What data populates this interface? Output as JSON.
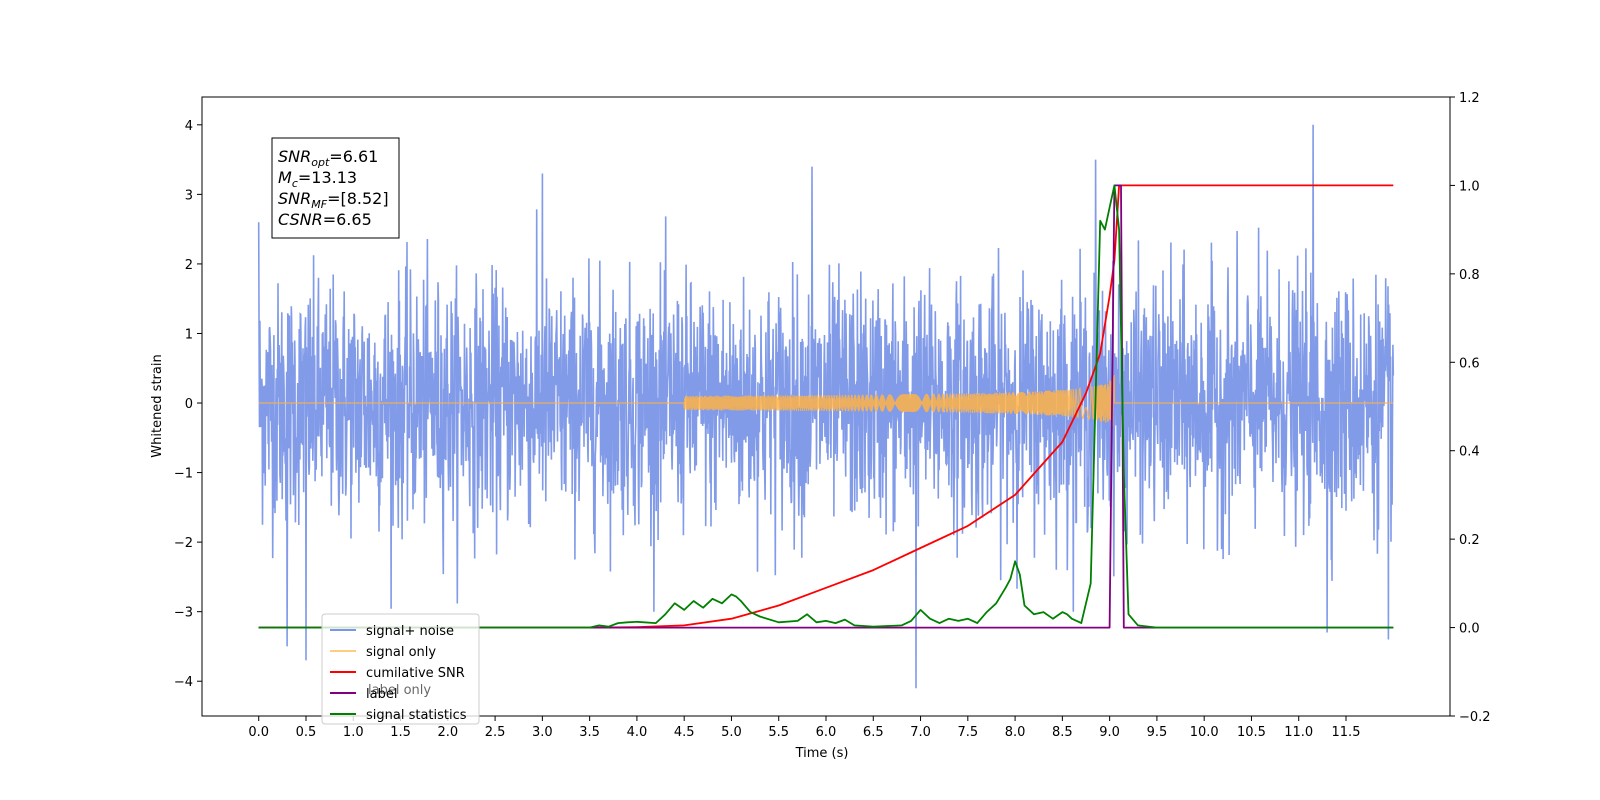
{
  "chart_data": {
    "type": "line",
    "title": "",
    "xlabel": "Time (s)",
    "ylabel": "Whitened strain",
    "ylabel_right": "",
    "xlim": [
      -0.6,
      12.6
    ],
    "ylim": [
      -4.5,
      4.4
    ],
    "ylim_right": [
      -0.2,
      1.2
    ],
    "x_ticks": [
      0.0,
      0.5,
      1.0,
      1.5,
      2.0,
      2.5,
      3.0,
      3.5,
      4.0,
      4.5,
      5.0,
      5.5,
      6.0,
      6.5,
      7.0,
      7.5,
      8.0,
      8.5,
      9.0,
      9.5,
      10.0,
      10.5,
      11.0,
      11.5
    ],
    "x_tick_labels": [
      "0.0",
      "0.5",
      "1.0",
      "1.5",
      "2.0",
      "2.5",
      "3.0",
      "3.5",
      "4.0",
      "4.5",
      "5.0",
      "5.5",
      "6.0",
      "6.5",
      "7.0",
      "7.5",
      "8.0",
      "8.5",
      "9.0",
      "9.5",
      "10.0",
      "10.5",
      "11.0",
      "11.5"
    ],
    "y_ticks": [
      -4,
      -3,
      -2,
      -1,
      0,
      1,
      2,
      3,
      4
    ],
    "y_tick_labels": [
      "−4",
      "−3",
      "−2",
      "−1",
      "0",
      "1",
      "2",
      "3",
      "4"
    ],
    "y_ticks_right": [
      -0.2,
      0.0,
      0.2,
      0.4,
      0.6,
      0.8,
      1.0,
      1.2
    ],
    "y_tick_labels_right": [
      "−0.2",
      "0.0",
      "0.2",
      "0.4",
      "0.6",
      "0.8",
      "1.0",
      "1.2"
    ],
    "grid": false,
    "legend_position": "lower-left",
    "annotation": {
      "lines": [
        {
          "symbol": "SNR",
          "sub": "opt",
          "value": "=6.61"
        },
        {
          "symbol": "M",
          "sub": "c",
          "value": "=13.13"
        },
        {
          "symbol": "SNR",
          "sub": "MF",
          "value": "=[8.52]"
        },
        {
          "symbol": "CSNR",
          "sub": "",
          "value": "=6.65"
        }
      ]
    },
    "series": [
      {
        "name": "signal+ noise",
        "axis": "left",
        "color": "#7a96e8",
        "description_values": {
          "x_range": [
            0.0,
            12.0
          ],
          "typical_envelope": [
            -2.0,
            2.3
          ],
          "peak_max": 4.0,
          "peak_min": -4.1
        },
        "notable_spikes": [
          [
            0.0,
            2.6
          ],
          [
            0.3,
            -3.5
          ],
          [
            0.5,
            -3.7
          ],
          [
            3.0,
            3.3
          ],
          [
            5.85,
            3.4
          ],
          [
            6.95,
            -4.1
          ],
          [
            8.85,
            3.5
          ],
          [
            11.15,
            4.0
          ],
          [
            11.3,
            -3.3
          ],
          [
            11.95,
            -3.4
          ]
        ]
      },
      {
        "name": "signal only",
        "axis": "left",
        "color": "#ffb347",
        "chirp": {
          "start": 4.5,
          "merger": 9.05,
          "end_amplitude": 0.4
        }
      },
      {
        "name": "cumilative SNR",
        "axis": "right",
        "color": "#ff0000",
        "x": [
          0.0,
          3.5,
          4.0,
          4.5,
          5.0,
          5.5,
          6.0,
          6.5,
          7.0,
          7.5,
          8.0,
          8.5,
          8.75,
          8.9,
          9.0,
          9.05,
          9.1,
          9.2,
          12.0
        ],
        "values": [
          0.0,
          0.0,
          0.001,
          0.005,
          0.02,
          0.05,
          0.09,
          0.13,
          0.18,
          0.23,
          0.3,
          0.42,
          0.53,
          0.62,
          0.75,
          0.83,
          1.0,
          1.0,
          1.0
        ]
      },
      {
        "name": "label",
        "axis": "right",
        "color": "#800080",
        "x": [
          0.0,
          9.0,
          9.05,
          9.12,
          9.15,
          9.2,
          12.0
        ],
        "values": [
          0.0,
          0.0,
          1.0,
          1.0,
          0.0,
          0.0,
          0.0
        ]
      },
      {
        "name": "signal statistics",
        "axis": "right",
        "color": "#008000",
        "x": [
          0.0,
          3.5,
          3.6,
          3.7,
          3.8,
          3.9,
          4.0,
          4.2,
          4.3,
          4.4,
          4.5,
          4.6,
          4.7,
          4.8,
          4.9,
          5.0,
          5.05,
          5.1,
          5.2,
          5.3,
          5.5,
          5.7,
          5.8,
          5.9,
          6.0,
          6.1,
          6.2,
          6.3,
          6.5,
          6.8,
          6.9,
          7.0,
          7.1,
          7.2,
          7.3,
          7.4,
          7.5,
          7.6,
          7.7,
          7.8,
          7.9,
          7.95,
          8.0,
          8.05,
          8.1,
          8.2,
          8.3,
          8.4,
          8.5,
          8.55,
          8.6,
          8.7,
          8.8,
          8.9,
          8.95,
          9.0,
          9.05,
          9.1,
          9.15,
          9.2,
          9.3,
          9.5,
          12.0
        ],
        "values": [
          0.0,
          0.0,
          0.005,
          0.002,
          0.01,
          0.012,
          0.013,
          0.01,
          0.03,
          0.055,
          0.04,
          0.06,
          0.045,
          0.065,
          0.055,
          0.075,
          0.07,
          0.06,
          0.035,
          0.025,
          0.012,
          0.015,
          0.03,
          0.012,
          0.015,
          0.01,
          0.018,
          0.005,
          0.002,
          0.005,
          0.015,
          0.04,
          0.02,
          0.01,
          0.02,
          0.015,
          0.02,
          0.01,
          0.035,
          0.055,
          0.09,
          0.11,
          0.15,
          0.12,
          0.05,
          0.03,
          0.035,
          0.02,
          0.035,
          0.03,
          0.02,
          0.01,
          0.1,
          0.92,
          0.9,
          0.95,
          1.0,
          0.9,
          0.35,
          0.03,
          0.005,
          0.0,
          0.0
        ]
      }
    ],
    "legend": [
      {
        "label": "signal+ noise",
        "color": "#7a96e8"
      },
      {
        "label": "signal only",
        "color": "#ffcc80"
      },
      {
        "label": "cumilative SNR",
        "color": "#ff0000"
      },
      {
        "label": "label",
        "color": "#800080"
      },
      {
        "label": "signal statistics",
        "color": "#008000"
      }
    ],
    "legend_overlap_text": [
      "label only"
    ]
  }
}
